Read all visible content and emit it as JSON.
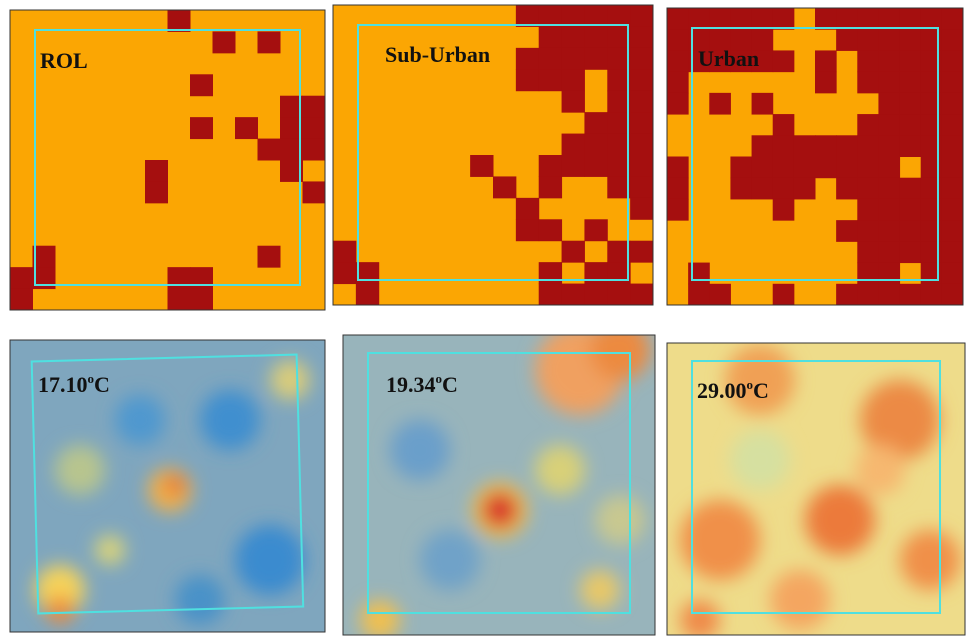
{
  "panels": [
    {
      "label": "ROL"
    },
    {
      "label": "Sub-Urban"
    },
    {
      "label": "Urban"
    }
  ],
  "temperatures": [
    {
      "value": "17.10",
      "degree": "o",
      "unit": "C"
    },
    {
      "value": "19.34",
      "degree": "o",
      "unit": "C"
    },
    {
      "value": "29.00",
      "degree": "o",
      "unit": "C"
    }
  ]
}
